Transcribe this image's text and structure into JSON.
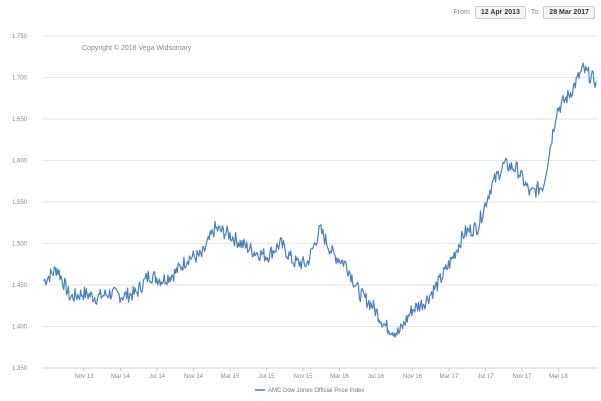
{
  "range": {
    "from_label": "From",
    "from_date": "12 Apr 2013",
    "to_label": "To",
    "to_date": "28 Mar 2017"
  },
  "copyright": "Copyright © 2016 Vega Widsomary",
  "chart_data": {
    "type": "line",
    "title": "",
    "xlabel": "",
    "ylabel": "",
    "ylim": [
      1.35,
      1.75
    ],
    "y_ticks": [
      1.35,
      1.4,
      1.45,
      1.5,
      1.55,
      1.6,
      1.65,
      1.7,
      1.75
    ],
    "y_tick_labels": [
      "1.350",
      "1.400",
      "1.450",
      "1.500",
      "1.550",
      "1.600",
      "1.650",
      "1.700",
      "1.750"
    ],
    "x_tick_labels": [
      "Nov 13",
      "Mar 14",
      "Jul 14",
      "Nov 14",
      "Mar 15",
      "Jul 15",
      "Nov 15",
      "Mar 16",
      "Jul 16",
      "Nov 16",
      "Mar 17",
      "Jul 17",
      "Nov 17",
      "Mar 18"
    ],
    "grid": true,
    "legend_position": "bottom-center",
    "series_color": "#4a7fc1",
    "series": [
      {
        "name": "AMC Dow Jones Official Price Index",
        "values": [
          1.455,
          1.47,
          1.435,
          1.44,
          1.435,
          1.44,
          1.437,
          1.44,
          1.462,
          1.456,
          1.465,
          1.483,
          1.485,
          1.518,
          1.512,
          1.5,
          1.49,
          1.485,
          1.5,
          1.478,
          1.475,
          1.517,
          1.487,
          1.475,
          1.44,
          1.425,
          1.4,
          1.392,
          1.42,
          1.43,
          1.452,
          1.48,
          1.513,
          1.52,
          1.568,
          1.595,
          1.59,
          1.56,
          1.57,
          1.66,
          1.68,
          1.71,
          1.695
        ]
      }
    ]
  },
  "legend": {
    "label": "AMC Dow Jones Official Price Index"
  }
}
